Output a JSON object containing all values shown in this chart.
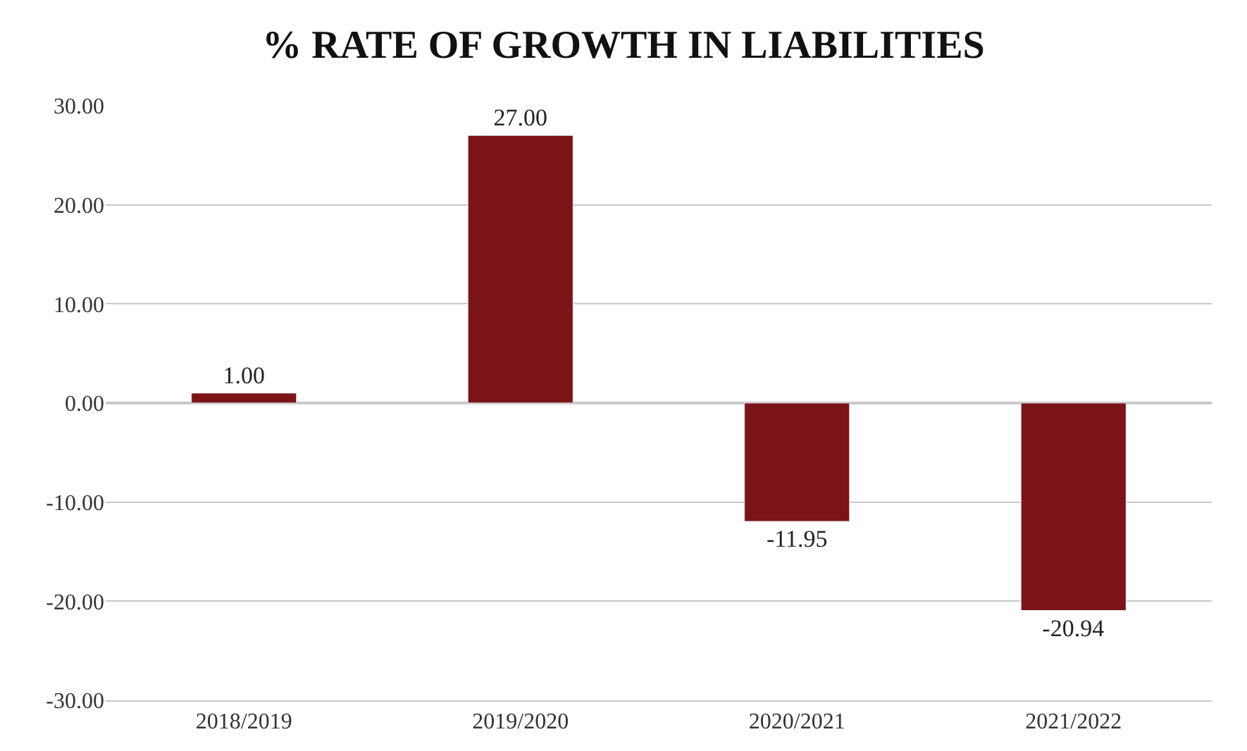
{
  "chart_data": {
    "type": "bar",
    "title": "% RATE OF GROWTH IN LIABILITIES",
    "categories": [
      "2018/2019",
      "2019/2020",
      "2020/2021",
      "2021/2022"
    ],
    "values": [
      1.0,
      27.0,
      -11.95,
      -20.94
    ],
    "value_labels": [
      "1.00",
      "27.00",
      "-11.95",
      "-20.94"
    ],
    "color": "#7b1416",
    "ylim": [
      -30,
      30
    ],
    "yticks": [
      {
        "value": 30,
        "label": "30.00"
      },
      {
        "value": 20,
        "label": "20.00"
      },
      {
        "value": 10,
        "label": "10.00"
      },
      {
        "value": 0,
        "label": "0.00"
      },
      {
        "value": -10,
        "label": "-10.00"
      },
      {
        "value": -20,
        "label": "-20.00"
      },
      {
        "value": -30,
        "label": "-30.00"
      }
    ],
    "grid": "y",
    "legend": false
  }
}
